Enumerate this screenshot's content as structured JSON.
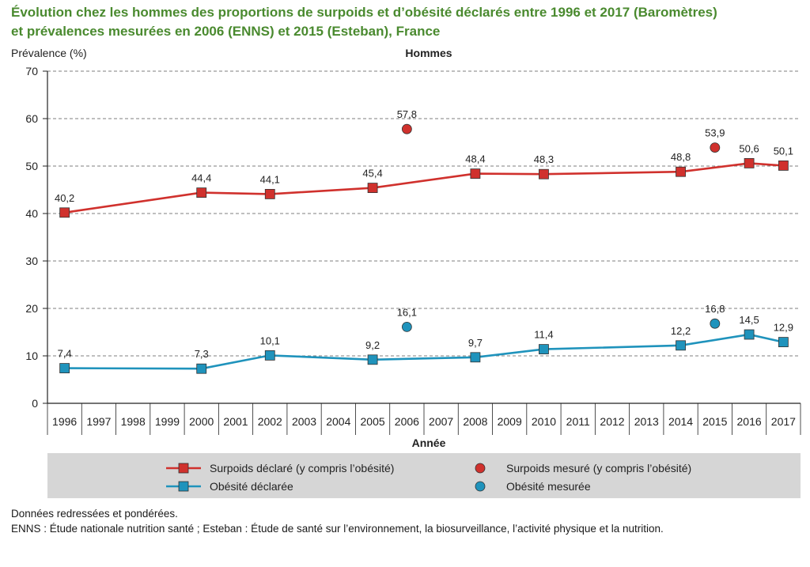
{
  "title": {
    "line1": "Évolution chez les hommes des proportions de surpoids et d’obésité déclarés entre 1996 et 2017 (Baromètres)",
    "line2": "et prévalences mesurées en 2006 (ENNS) et 2015 (Esteban), France"
  },
  "chart_data": {
    "type": "line",
    "subtitle": "Hommes",
    "ylabel": "Prévalence (%)",
    "xlabel": "Année",
    "ylim": [
      0,
      70
    ],
    "yticks": [
      0,
      10,
      20,
      30,
      40,
      50,
      60,
      70
    ],
    "x": [
      "1996",
      "1997",
      "1998",
      "1999",
      "2000",
      "2001",
      "2002",
      "2003",
      "2004",
      "2005",
      "2006",
      "2007",
      "2008",
      "2009",
      "2010",
      "2011",
      "2012",
      "2013",
      "2014",
      "2015",
      "2016",
      "2017"
    ],
    "grid": "horizontal dashed",
    "legend_position": "bottom",
    "series": [
      {
        "name": "Surpoids déclaré (y compris l’obésité)",
        "kind": "line-square",
        "color": "#d0312d",
        "points": [
          {
            "x": "1996",
            "y": 40.2,
            "label": "40,2"
          },
          {
            "x": "2000",
            "y": 44.4,
            "label": "44,4"
          },
          {
            "x": "2002",
            "y": 44.1,
            "label": "44,1"
          },
          {
            "x": "2005",
            "y": 45.4,
            "label": "45,4"
          },
          {
            "x": "2008",
            "y": 48.4,
            "label": "48,4"
          },
          {
            "x": "2010",
            "y": 48.3,
            "label": "48,3"
          },
          {
            "x": "2014",
            "y": 48.8,
            "label": "48,8"
          },
          {
            "x": "2016",
            "y": 50.6,
            "label": "50,6"
          },
          {
            "x": "2017",
            "y": 50.1,
            "label": "50,1"
          }
        ]
      },
      {
        "name": "Surpoids mesuré (y compris l’obésité)",
        "kind": "dot",
        "color": "#d0312d",
        "points": [
          {
            "x": "2006",
            "y": 57.8,
            "label": "57,8"
          },
          {
            "x": "2015",
            "y": 53.9,
            "label": "53,9"
          }
        ]
      },
      {
        "name": "Obésité déclarée",
        "kind": "line-square",
        "color": "#1f93bc",
        "points": [
          {
            "x": "1996",
            "y": 7.4,
            "label": "7,4"
          },
          {
            "x": "2000",
            "y": 7.3,
            "label": "7,3"
          },
          {
            "x": "2002",
            "y": 10.1,
            "label": "10,1"
          },
          {
            "x": "2005",
            "y": 9.2,
            "label": "9,2"
          },
          {
            "x": "2008",
            "y": 9.7,
            "label": "9,7"
          },
          {
            "x": "2010",
            "y": 11.4,
            "label": "11,4"
          },
          {
            "x": "2014",
            "y": 12.2,
            "label": "12,2"
          },
          {
            "x": "2016",
            "y": 14.5,
            "label": "14,5"
          },
          {
            "x": "2017",
            "y": 12.9,
            "label": "12,9"
          }
        ]
      },
      {
        "name": "Obésité mesurée",
        "kind": "dot",
        "color": "#1f93bc",
        "points": [
          {
            "x": "2006",
            "y": 16.1,
            "label": "16,1"
          },
          {
            "x": "2015",
            "y": 16.8,
            "label": "16,8"
          }
        ]
      }
    ]
  },
  "notes": {
    "line1": "Données redressées et pondérées.",
    "line2": "ENNS : Étude nationale nutrition santé ; Esteban : Étude de santé sur l’environnement, la biosurveillance, l’activité physique et la nutrition."
  }
}
